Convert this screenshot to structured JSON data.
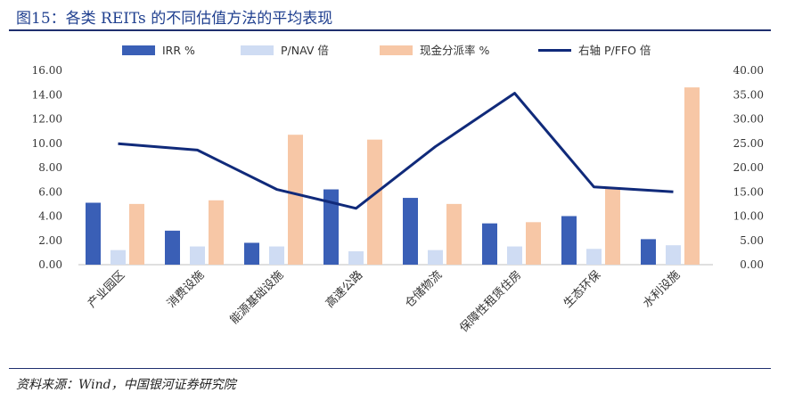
{
  "header": {
    "title": "图15：各类 REITs 的不同估值方法的平均表现"
  },
  "footer": {
    "source": "资料来源：Wind，中国银河证券研究院"
  },
  "colors": {
    "irr": "#3a5fb6",
    "pnav": "#cfdcf3",
    "div": "#f7c7a6",
    "pffo": "#102a7a"
  },
  "chart_data": {
    "type": "bar",
    "categories": [
      "产业园区",
      "消费设施",
      "能源基础设施",
      "高速公路",
      "仓储物流",
      "保障性租赁住房",
      "生态环保",
      "水利设施"
    ],
    "series": [
      {
        "name": "IRR %",
        "type": "bar",
        "axis": "left",
        "values": [
          5.1,
          2.8,
          1.8,
          6.2,
          5.5,
          3.4,
          4.0,
          2.1
        ]
      },
      {
        "name": "P/NAV 倍",
        "type": "bar",
        "axis": "left",
        "values": [
          1.2,
          1.5,
          1.5,
          1.1,
          1.2,
          1.5,
          1.3,
          1.6
        ]
      },
      {
        "name": "现金分派率 %",
        "type": "bar",
        "axis": "left",
        "values": [
          5.0,
          5.3,
          10.7,
          10.3,
          5.0,
          3.5,
          6.3,
          14.6
        ]
      },
      {
        "name": "右轴 P/FFO 倍",
        "type": "line",
        "axis": "right",
        "values": [
          24.9,
          23.6,
          15.5,
          11.6,
          24.3,
          35.3,
          16.0,
          15.0
        ]
      }
    ],
    "ylim_left": [
      0,
      16
    ],
    "yticks_left": [
      "0.00",
      "2.00",
      "4.00",
      "6.00",
      "8.00",
      "10.00",
      "12.00",
      "14.00",
      "16.00"
    ],
    "ylim_right": [
      0,
      40
    ],
    "yticks_right": [
      "0.00",
      "5.00",
      "10.00",
      "15.00",
      "20.00",
      "25.00",
      "30.00",
      "35.00",
      "40.00"
    ],
    "legend_position": "top",
    "grid": false
  }
}
